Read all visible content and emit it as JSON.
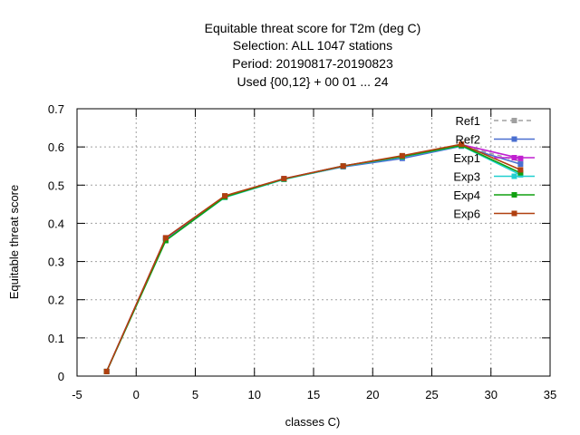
{
  "chart_data": {
    "type": "line",
    "title_lines": [
      "Equitable threat score  for T2m (deg C)",
      "Selection: ALL    1047 stations",
      "Period: 20190817-20190823",
      "Used {00,12} + 00 01 ... 24"
    ],
    "xlabel": "classes C)",
    "ylabel": "Equitable threat score",
    "xlim": [
      -5,
      35
    ],
    "ylim": [
      0,
      0.7
    ],
    "x_ticks": [
      "-5",
      "0",
      "5",
      "10",
      "15",
      "20",
      "25",
      "30",
      "35"
    ],
    "y_ticks": [
      "0",
      "0.1",
      "0.2",
      "0.3",
      "0.4",
      "0.5",
      "0.6",
      "0.7"
    ],
    "grid": true,
    "legend_position": "top-right",
    "x": [
      -2.5,
      2.5,
      7.5,
      12.5,
      17.5,
      22.5,
      27.5,
      32.5
    ],
    "series": [
      {
        "name": "Ref1",
        "color": "#a0a0a0",
        "dashed": true,
        "values": [
          0.012,
          0.36,
          0.47,
          0.516,
          0.549,
          0.575,
          0.604,
          0.562
        ]
      },
      {
        "name": "Ref2",
        "color": "#4a6fd0",
        "dashed": false,
        "values": [
          0.012,
          0.36,
          0.47,
          0.516,
          0.548,
          0.57,
          0.602,
          0.555
        ]
      },
      {
        "name": "Exp1",
        "color": "#c020d0",
        "dashed": false,
        "values": [
          0.012,
          0.362,
          0.471,
          0.517,
          0.55,
          0.576,
          0.606,
          0.57
        ]
      },
      {
        "name": "Exp3",
        "color": "#20d0d0",
        "dashed": false,
        "values": [
          0.012,
          0.355,
          0.468,
          0.515,
          0.549,
          0.574,
          0.603,
          0.527
        ]
      },
      {
        "name": "Exp4",
        "color": "#10a010",
        "dashed": false,
        "values": [
          0.012,
          0.355,
          0.469,
          0.516,
          0.55,
          0.575,
          0.604,
          0.532
        ]
      },
      {
        "name": "Exp6",
        "color": "#b04010",
        "dashed": false,
        "values": [
          0.012,
          0.362,
          0.472,
          0.517,
          0.55,
          0.577,
          0.607,
          0.54
        ]
      }
    ]
  }
}
